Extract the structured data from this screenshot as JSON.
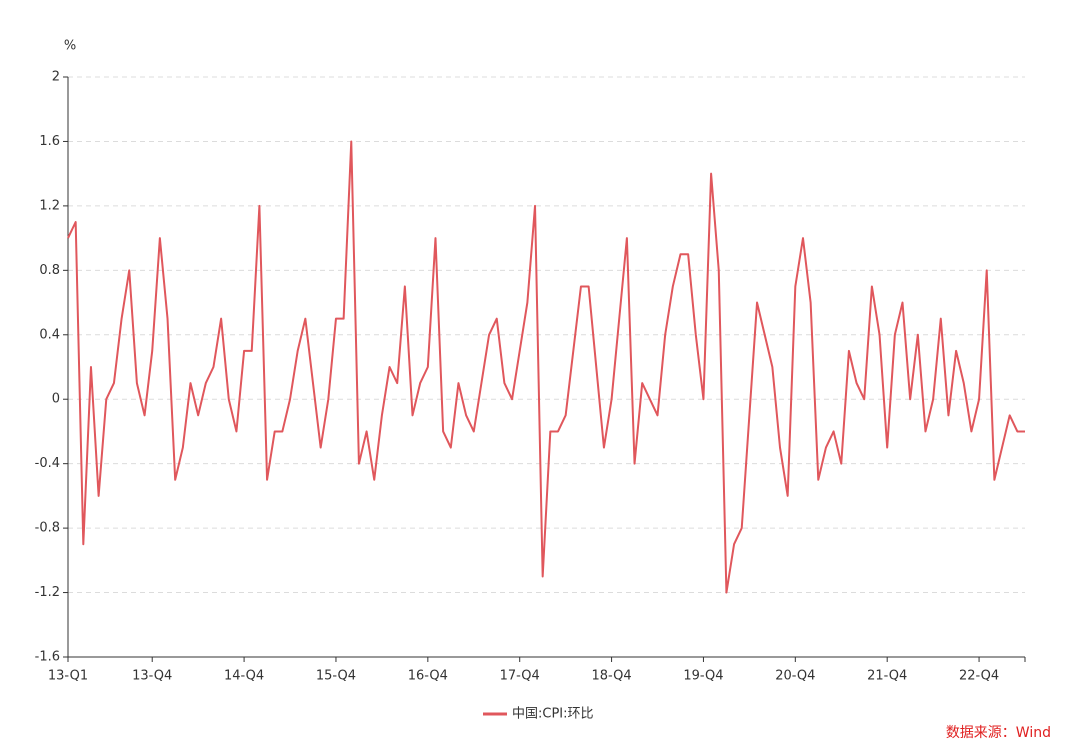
{
  "chart_data": {
    "type": "line",
    "y_unit": "%",
    "source": "数据来源：Wind",
    "categories": [
      "13-Q1",
      null,
      null,
      null,
      null,
      null,
      null,
      null,
      null,
      null,
      null,
      "13-Q4",
      null,
      null,
      null,
      null,
      null,
      null,
      null,
      null,
      null,
      null,
      null,
      "14-Q4",
      null,
      null,
      null,
      null,
      null,
      null,
      null,
      null,
      null,
      null,
      null,
      "15-Q4",
      null,
      null,
      null,
      null,
      null,
      null,
      null,
      null,
      null,
      null,
      null,
      "16-Q4",
      null,
      null,
      null,
      null,
      null,
      null,
      null,
      null,
      null,
      null,
      null,
      "17-Q4",
      null,
      null,
      null,
      null,
      null,
      null,
      null,
      null,
      null,
      null,
      null,
      "18-Q4",
      null,
      null,
      null,
      null,
      null,
      null,
      null,
      null,
      null,
      null,
      null,
      "19-Q4",
      null,
      null,
      null,
      null,
      null,
      null,
      null,
      null,
      null,
      null,
      null,
      "20-Q4",
      null,
      null,
      null,
      null,
      null,
      null,
      null,
      null,
      null,
      null,
      null,
      "21-Q4",
      null,
      null,
      null,
      null,
      null,
      null,
      null,
      null,
      null,
      null,
      null,
      "22-Q4",
      null,
      null,
      null,
      null,
      null,
      null
    ],
    "series": [
      {
        "name": "中国:CPI:环比",
        "color": "#e0575c",
        "values": [
          1.0,
          1.1,
          -0.9,
          0.2,
          -0.6,
          0.0,
          0.1,
          0.5,
          0.8,
          0.1,
          -0.1,
          0.3,
          1.0,
          0.5,
          -0.5,
          -0.3,
          0.1,
          -0.1,
          0.1,
          0.2,
          0.5,
          0.0,
          -0.2,
          0.3,
          0.3,
          1.2,
          -0.5,
          -0.2,
          -0.2,
          0.0,
          0.3,
          0.5,
          0.1,
          -0.3,
          0.0,
          0.5,
          0.5,
          1.6,
          -0.4,
          -0.2,
          -0.5,
          -0.1,
          0.2,
          0.1,
          0.7,
          -0.1,
          0.1,
          0.2,
          1.0,
          -0.2,
          -0.3,
          0.1,
          -0.1,
          -0.2,
          0.1,
          0.4,
          0.5,
          0.1,
          0.0,
          0.3,
          0.6,
          1.2,
          -1.1,
          -0.2,
          -0.2,
          -0.1,
          0.3,
          0.7,
          0.7,
          0.2,
          -0.3,
          0.0,
          0.5,
          1.0,
          -0.4,
          0.1,
          0.0,
          -0.1,
          0.4,
          0.7,
          0.9,
          0.9,
          0.4,
          0.0,
          1.4,
          0.8,
          -1.2,
          -0.9,
          -0.8,
          -0.1,
          0.6,
          0.4,
          0.2,
          -0.3,
          -0.6,
          0.7,
          1.0,
          0.6,
          -0.5,
          -0.3,
          -0.2,
          -0.4,
          0.3,
          0.1,
          0.0,
          0.7,
          0.4,
          -0.3,
          0.4,
          0.6,
          0.0,
          0.4,
          -0.2,
          0.0,
          0.5,
          -0.1,
          0.3,
          0.1,
          -0.2,
          0.0,
          0.8,
          -0.5,
          -0.3,
          -0.1,
          -0.2,
          -0.2
        ]
      }
    ],
    "ylim": [
      -1.6,
      2
    ],
    "yticks": [
      -1.6,
      -1.2,
      -0.8,
      -0.4,
      0,
      0.4,
      0.8,
      1.2,
      1.6,
      2
    ],
    "grid": true,
    "legend": "bottom"
  }
}
